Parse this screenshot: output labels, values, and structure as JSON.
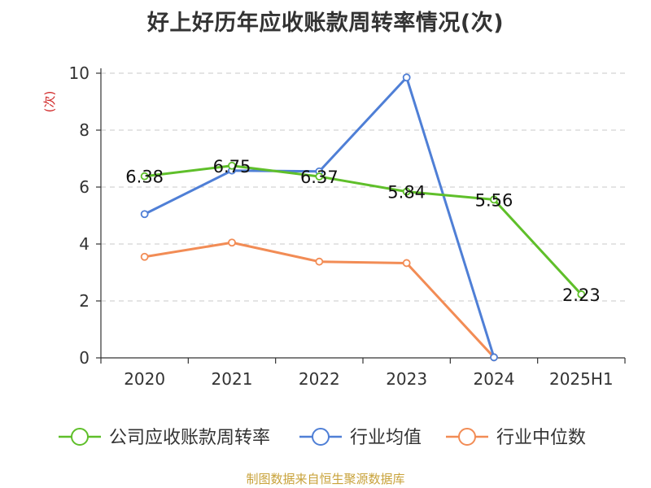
{
  "chart_data": {
    "type": "line",
    "title": "好上好历年应收账款周转率情况(次)",
    "ylabel": "(次)",
    "categories": [
      "2020",
      "2021",
      "2022",
      "2023",
      "2024",
      "2025H1"
    ],
    "yticks": [
      "0",
      "2",
      "4",
      "6",
      "8",
      "10"
    ],
    "ylim": [
      0,
      10
    ],
    "grid": true,
    "legend_position": "bottom",
    "series": [
      {
        "name": "公司应收账款周转率",
        "color": "#5fbf2a",
        "values": [
          6.38,
          6.75,
          6.37,
          5.84,
          5.56,
          2.23
        ],
        "labels": [
          "6.38",
          "6.75",
          "6.37",
          "5.84",
          "5.56",
          "2.23"
        ]
      },
      {
        "name": "行业均值",
        "color": "#4f7fd6",
        "values": [
          5.05,
          6.58,
          6.55,
          9.85,
          0.02,
          null
        ]
      },
      {
        "name": "行业中位数",
        "color": "#f28c55",
        "values": [
          3.55,
          4.05,
          3.38,
          3.33,
          0.02,
          null
        ]
      }
    ],
    "source": "制图数据来自恒生聚源数据库"
  }
}
